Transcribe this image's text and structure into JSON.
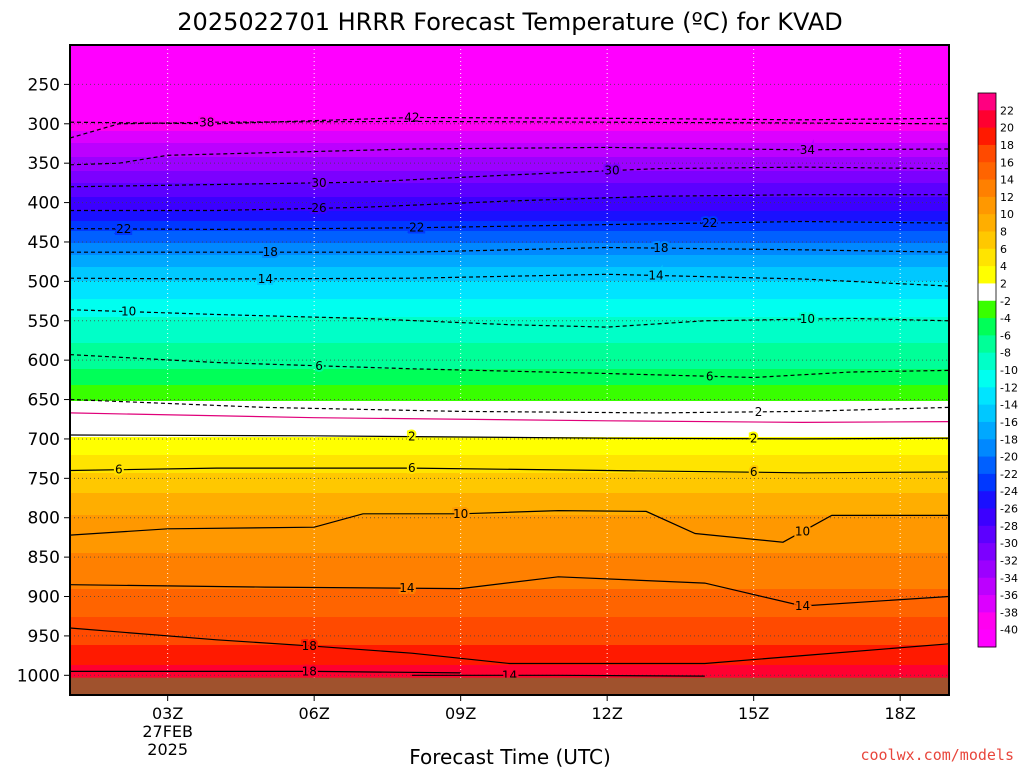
{
  "chart_data": {
    "type": "heatmap",
    "title": "2025022701 HRRR Forecast Temperature (ºC) for KVAD",
    "xlabel": "Forecast Time (UTC)",
    "credit": "coolwx.com/models",
    "credit_color": "#e8463c",
    "x_ticks": [
      {
        "hour": 3,
        "label": "03Z"
      },
      {
        "hour": 6,
        "label": "06Z"
      },
      {
        "hour": 9,
        "label": "09Z"
      },
      {
        "hour": 12,
        "label": "12Z"
      },
      {
        "hour": 15,
        "label": "15Z"
      },
      {
        "hour": 18,
        "label": "18Z"
      }
    ],
    "date_label": [
      "27FEB",
      "2025"
    ],
    "xlim_hours": [
      1,
      19
    ],
    "y_ticks": [
      250,
      300,
      350,
      400,
      450,
      500,
      550,
      600,
      650,
      700,
      750,
      800,
      850,
      900,
      950,
      1000
    ],
    "ylim_hpa": [
      200,
      1025
    ],
    "temperature_profile": [
      {
        "p": 200,
        "t": -58
      },
      {
        "p": 250,
        "t": -48
      },
      {
        "p": 270,
        "t": -44
      },
      {
        "p": 300,
        "t": -39
      },
      {
        "p": 340,
        "t": -34
      },
      {
        "p": 375,
        "t": -30
      },
      {
        "p": 410,
        "t": -26
      },
      {
        "p": 435,
        "t": -22
      },
      {
        "p": 465,
        "t": -18
      },
      {
        "p": 498,
        "t": -14
      },
      {
        "p": 545,
        "t": -10
      },
      {
        "p": 610,
        "t": -6
      },
      {
        "p": 650,
        "t": -2
      },
      {
        "p": 680,
        "t": 0
      },
      {
        "p": 697,
        "t": 2
      },
      {
        "p": 742,
        "t": 6
      },
      {
        "p": 795,
        "t": 10
      },
      {
        "p": 890,
        "t": 14
      },
      {
        "p": 960,
        "t": 18
      },
      {
        "p": 1000,
        "t": 21
      }
    ],
    "surface_hpa": 1003,
    "surface_color": "#a0522d",
    "colorbar": {
      "labels": [
        "22",
        "20",
        "18",
        "16",
        "14",
        "12",
        "10",
        "8",
        "6",
        "4",
        "2",
        "-2",
        "-4",
        "-6",
        "-8",
        "-10",
        "-12",
        "-14",
        "-16",
        "-18",
        "-20",
        "-22",
        "-24",
        "-26",
        "-28",
        "-30",
        "-32",
        "-34",
        "-36",
        "-38",
        "-40"
      ],
      "colors": [
        "#ff0080",
        "#ff0030",
        "#ff1a00",
        "#ff4a00",
        "#ff6400",
        "#ff8000",
        "#ff9800",
        "#ffae00",
        "#ffc800",
        "#ffe400",
        "#ffff00",
        "#ffffff",
        "#38ff00",
        "#00ff58",
        "#00ff98",
        "#00ffc8",
        "#00fff0",
        "#00e4ff",
        "#00c8ff",
        "#00a8ff",
        "#0088ff",
        "#0060ff",
        "#0038ff",
        "#1a10ff",
        "#3c00ff",
        "#5c00ff",
        "#7c00ff",
        "#9c00ff",
        "#bc00ff",
        "#dc00ff",
        "#ff00f0",
        "#ff00ff"
      ]
    },
    "contours": [
      {
        "label": "42",
        "style": "dashed",
        "pts": [
          [
            1,
            298
          ],
          [
            4,
            300
          ],
          [
            8,
            292
          ],
          [
            12,
            293
          ],
          [
            16,
            295
          ],
          [
            19,
            293
          ]
        ],
        "labels_at": [
          8
        ]
      },
      {
        "label": "38",
        "style": "dashed",
        "pts": [
          [
            1,
            318
          ],
          [
            2,
            300
          ],
          [
            4,
            298
          ],
          [
            8,
            297
          ],
          [
            12,
            298
          ],
          [
            16,
            299
          ],
          [
            19,
            300
          ]
        ],
        "labels_at": [
          3.8
        ]
      },
      {
        "label": "34",
        "style": "dashed",
        "pts": [
          [
            1,
            352
          ],
          [
            2,
            350
          ],
          [
            3,
            340
          ],
          [
            8,
            332
          ],
          [
            12,
            330
          ],
          [
            16,
            333
          ],
          [
            19,
            332
          ]
        ],
        "labels_at": [
          16.1
        ]
      },
      {
        "label": "30",
        "style": "dashed",
        "pts": [
          [
            1,
            380
          ],
          [
            4,
            377
          ],
          [
            7,
            374
          ],
          [
            10,
            365
          ],
          [
            13,
            357
          ],
          [
            16,
            355
          ],
          [
            19,
            357
          ]
        ],
        "labels_at": [
          6.1,
          12.1
        ]
      },
      {
        "label": "26",
        "style": "dashed",
        "pts": [
          [
            1,
            410
          ],
          [
            4,
            410
          ],
          [
            7,
            406
          ],
          [
            10,
            398
          ],
          [
            13,
            392
          ],
          [
            16,
            390
          ],
          [
            19,
            390
          ]
        ],
        "labels_at": [
          6.1
        ]
      },
      {
        "label": "22",
        "style": "dashed",
        "pts": [
          [
            1,
            433
          ],
          [
            4,
            434
          ],
          [
            8,
            432
          ],
          [
            12,
            428
          ],
          [
            16,
            424
          ],
          [
            19,
            426
          ]
        ],
        "labels_at": [
          2.1,
          8.1,
          14.1
        ]
      },
      {
        "label": "18",
        "style": "dashed",
        "pts": [
          [
            1,
            463
          ],
          [
            4,
            463
          ],
          [
            8,
            463
          ],
          [
            12,
            457
          ],
          [
            16,
            460
          ],
          [
            19,
            463
          ]
        ],
        "labels_at": [
          5.1,
          13.1
        ]
      },
      {
        "label": "14",
        "style": "dashed",
        "pts": [
          [
            1,
            496
          ],
          [
            4,
            497
          ],
          [
            8,
            496
          ],
          [
            12,
            491
          ],
          [
            16,
            497
          ],
          [
            19,
            506
          ]
        ],
        "labels_at": [
          5,
          13
        ]
      },
      {
        "label": "10",
        "style": "dashed",
        "pts": [
          [
            1,
            536
          ],
          [
            4,
            542
          ],
          [
            7,
            547
          ],
          [
            10,
            555
          ],
          [
            12,
            558
          ],
          [
            14,
            550
          ],
          [
            17,
            547
          ],
          [
            19,
            550
          ]
        ],
        "labels_at": [
          2.2,
          16.1
        ]
      },
      {
        "label": "6",
        "style": "dashed",
        "pts": [
          [
            1,
            593
          ],
          [
            4,
            603
          ],
          [
            8,
            611
          ],
          [
            12,
            617
          ],
          [
            15,
            622
          ],
          [
            17,
            615
          ],
          [
            19,
            613
          ]
        ],
        "labels_at": [
          6.1,
          14.1
        ]
      },
      {
        "label": "2",
        "style": "dashed",
        "pts": [
          [
            1,
            650
          ],
          [
            5,
            660
          ],
          [
            9,
            665
          ],
          [
            13,
            667
          ],
          [
            16,
            665
          ],
          [
            19,
            660
          ]
        ],
        "labels_at": [
          15.1
        ]
      },
      {
        "label": "0",
        "style": "magenta",
        "pts": [
          [
            1,
            667
          ],
          [
            6,
            673
          ],
          [
            12,
            677
          ],
          [
            16,
            679
          ],
          [
            19,
            678
          ]
        ],
        "labels_at": []
      },
      {
        "label": "2",
        "style": "solid",
        "pts": [
          [
            1,
            695
          ],
          [
            6,
            696
          ],
          [
            12,
            699
          ],
          [
            16,
            700
          ],
          [
            19,
            699
          ]
        ],
        "labels_at": [
          8,
          15
        ]
      },
      {
        "label": "6",
        "style": "solid",
        "pts": [
          [
            1,
            740
          ],
          [
            4,
            737
          ],
          [
            8,
            737
          ],
          [
            12,
            740
          ],
          [
            16,
            743
          ],
          [
            19,
            742
          ]
        ],
        "labels_at": [
          2,
          8,
          15
        ]
      },
      {
        "label": "10",
        "style": "solid",
        "pts": [
          [
            1,
            822
          ],
          [
            3,
            814
          ],
          [
            6,
            812
          ],
          [
            7,
            795
          ],
          [
            9,
            795
          ],
          [
            11,
            791
          ],
          [
            12.8,
            792
          ],
          [
            13.8,
            820
          ],
          [
            15.6,
            831
          ],
          [
            16.6,
            797
          ],
          [
            19,
            797
          ]
        ],
        "labels_at": [
          9,
          16
        ]
      },
      {
        "label": "14",
        "style": "solid",
        "pts": [
          [
            1,
            885
          ],
          [
            5,
            888
          ],
          [
            9,
            890
          ],
          [
            11,
            875
          ],
          [
            14,
            883
          ],
          [
            16,
            912
          ],
          [
            19,
            900
          ]
        ],
        "labels_at": [
          7.9,
          16
        ]
      },
      {
        "label": "18",
        "style": "solid",
        "pts": [
          [
            1,
            940
          ],
          [
            4,
            955
          ],
          [
            6,
            963
          ],
          [
            8,
            972
          ],
          [
            10,
            985
          ],
          [
            14,
            985
          ],
          [
            16,
            975
          ],
          [
            19,
            960
          ]
        ],
        "labels_at": [
          5.9
        ]
      },
      {
        "label": "18",
        "style": "solid",
        "pts": [
          [
            1,
            995
          ],
          [
            6,
            995
          ],
          [
            9,
            997
          ]
        ],
        "labels_at": [
          5.9
        ]
      },
      {
        "label": "14",
        "style": "solid",
        "pts": [
          [
            8,
            1000
          ],
          [
            11,
            1000
          ],
          [
            14,
            1001
          ]
        ],
        "labels_at": [
          10
        ]
      }
    ]
  }
}
